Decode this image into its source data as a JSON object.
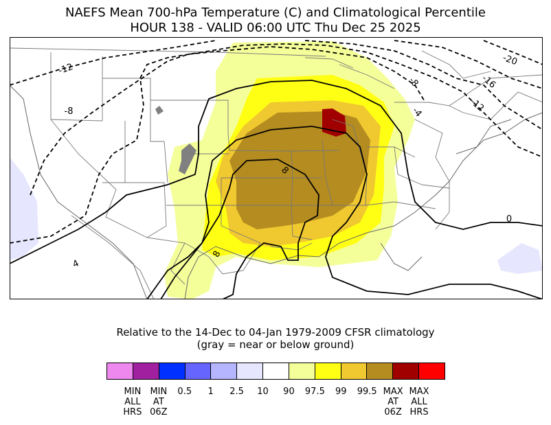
{
  "title": {
    "line1": "NAEFS Mean 700-hPa Temperature (C) and Climatological Percentile",
    "line2": "HOUR 138 - VALID 06:00 UTC Thu Dec 25 2025"
  },
  "subtitle": {
    "line1": "Relative to the 14-Dec to 04-Jan 1979-2009 CFSR climatology",
    "line2": "(gray = near or below ground)"
  },
  "map": {
    "contour_labels": [
      "-20",
      "-16",
      "-12",
      "-12",
      "-8",
      "-8",
      "-4",
      "0",
      "4",
      "8",
      "8"
    ],
    "ground_color": "#808080"
  },
  "colorbar": {
    "colors": [
      "#ee88ee",
      "#a020a0",
      "#0030ff",
      "#6666ff",
      "#b4b4ff",
      "#e6e6ff",
      "#ffffff",
      "#f5ff9a",
      "#ffff14",
      "#f0c830",
      "#b48c20",
      "#a00000",
      "#ff0000"
    ],
    "tick_labels": [
      [
        "MIN",
        "ALL",
        "HRS"
      ],
      [
        "MIN",
        "AT",
        "06Z"
      ],
      [
        "0.5"
      ],
      [
        "1"
      ],
      [
        "2.5"
      ],
      [
        "10"
      ],
      [
        "90"
      ],
      [
        "97.5"
      ],
      [
        "99"
      ],
      [
        "99.5"
      ],
      [
        "MAX",
        "AT",
        "06Z"
      ],
      [
        "MAX",
        "ALL",
        "HRS"
      ]
    ]
  }
}
